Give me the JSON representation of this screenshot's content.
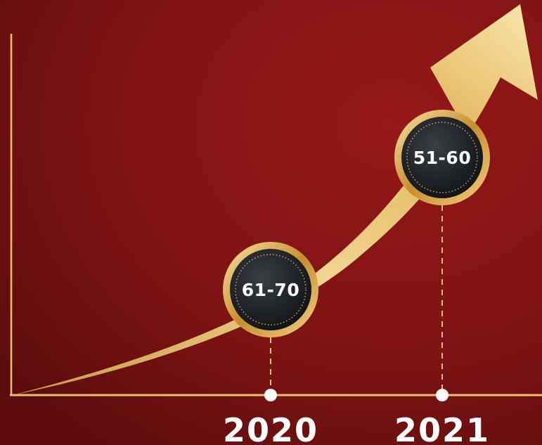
{
  "chart_data": {
    "type": "line",
    "x": [
      "2020",
      "2021"
    ],
    "series": [
      {
        "values": [
          "61-70",
          "51-60"
        ]
      }
    ],
    "tick_labels": [
      "2020",
      "2021"
    ],
    "data_labels": [
      "61-70",
      "51-60"
    ],
    "grid": false,
    "legend": "none"
  },
  "colors": {
    "background": "#7a1212",
    "gold": "#e7c170",
    "gold_dark": "#b8862b",
    "badge_face": "#1c1f23",
    "text": "#ffffff"
  }
}
